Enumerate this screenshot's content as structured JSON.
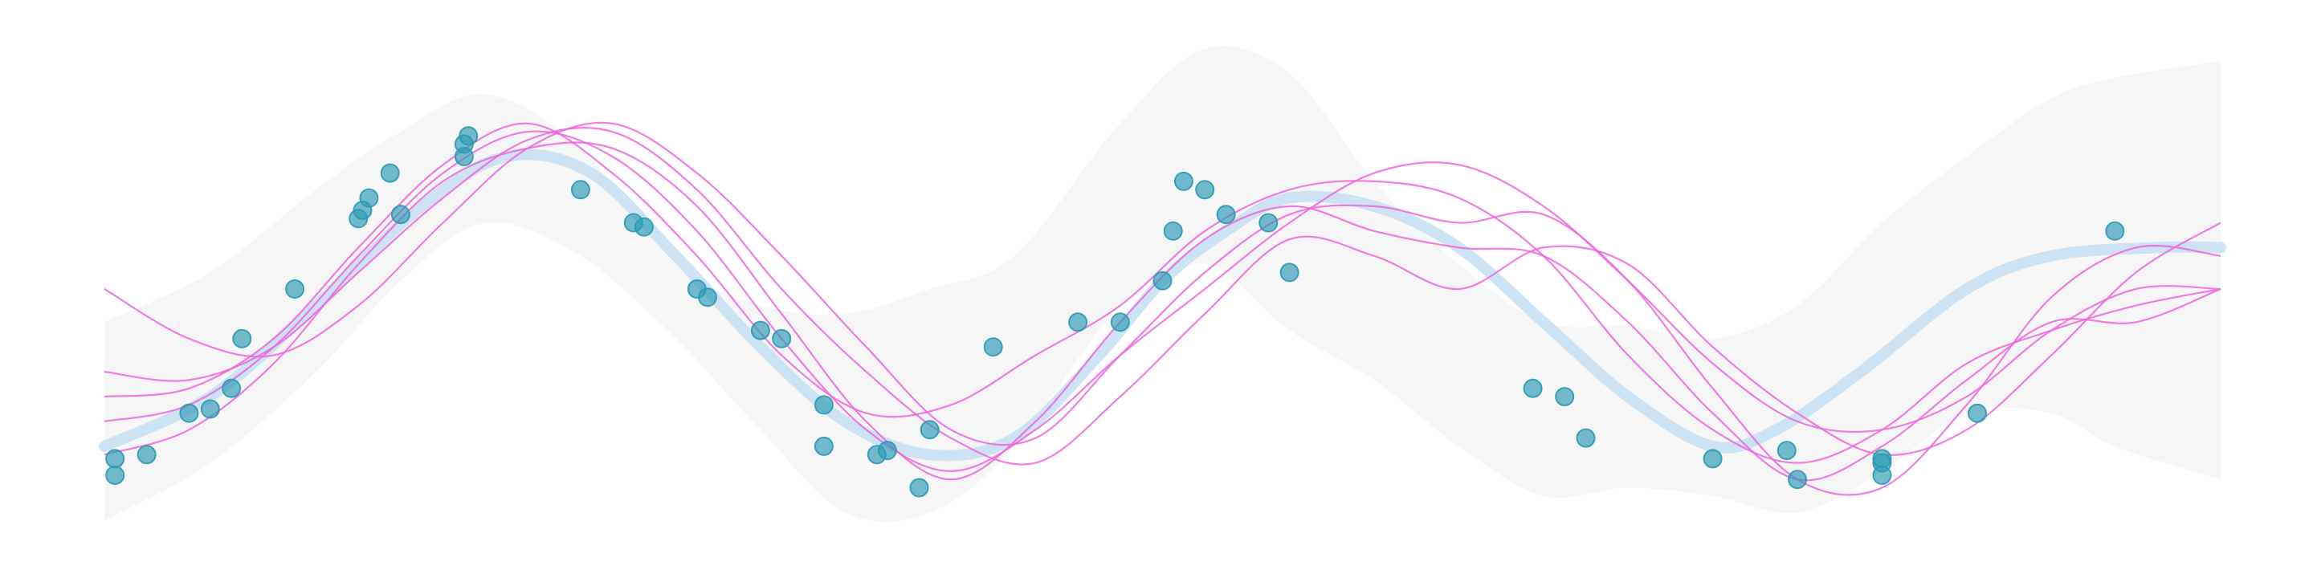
{
  "chart_data": {
    "type": "scatter",
    "title": "",
    "xlabel": "",
    "ylabel": "",
    "xlim": [
      0,
      10
    ],
    "ylim": [
      -3.2,
      3.2
    ],
    "grid": false,
    "legend": "none",
    "colors": {
      "band": "#ededed",
      "mean": "#c6dff2",
      "samples": "#ee66dd",
      "points": "#2b9ab3"
    },
    "series": [
      {
        "role": "confidence-band",
        "x": [
          0.0,
          0.5,
          1.0,
          1.4,
          1.8,
          2.25,
          2.7,
          3.1,
          3.5,
          3.9,
          4.3,
          4.8,
          5.2,
          5.6,
          6.0,
          6.4,
          6.8,
          7.2,
          7.6,
          8.0,
          8.4,
          8.8,
          9.2,
          9.5,
          10.0
        ],
        "upper": [
          -0.4,
          0.2,
          1.2,
          1.9,
          2.35,
          1.7,
          0.3,
          -0.2,
          -0.3,
          0.0,
          0.4,
          2.0,
          2.9,
          2.6,
          1.3,
          0.3,
          -0.4,
          -0.45,
          -0.6,
          -0.2,
          0.8,
          1.6,
          2.3,
          2.55,
          2.75
        ],
        "lower": [
          -2.8,
          -2.1,
          -1.0,
          0.1,
          0.8,
          0.4,
          -0.6,
          -1.7,
          -2.7,
          -2.7,
          -1.9,
          -0.2,
          0.3,
          -0.5,
          -1.1,
          -1.9,
          -2.5,
          -2.4,
          -2.5,
          -2.7,
          -2.2,
          -1.5,
          -1.5,
          -1.9,
          -2.3
        ]
      },
      {
        "role": "mean",
        "x": [
          0.0,
          0.5,
          1.0,
          1.5,
          1.9,
          2.3,
          2.7,
          3.1,
          3.5,
          3.9,
          4.3,
          4.7,
          5.0,
          5.3,
          5.6,
          6.0,
          6.4,
          6.8,
          7.2,
          7.6,
          7.9,
          8.3,
          8.8,
          9.2,
          9.7,
          10.0
        ],
        "y": [
          -1.9,
          -1.3,
          -0.2,
          1.0,
          1.6,
          1.4,
          0.4,
          -0.7,
          -1.6,
          -2.0,
          -1.8,
          -0.8,
          0.1,
          0.7,
          1.1,
          1.0,
          0.5,
          -0.4,
          -1.3,
          -1.9,
          -1.7,
          -1.0,
          0.0,
          0.4,
          0.5,
          0.5
        ]
      },
      {
        "role": "sample",
        "x": [
          0.0,
          0.4,
          0.8,
          1.2,
          1.6,
          2.0,
          2.4,
          2.8,
          3.2,
          3.6,
          4.0,
          4.4,
          4.8,
          5.2,
          5.6,
          6.0,
          6.4,
          6.8,
          7.2,
          7.6,
          8.0,
          8.4,
          8.8,
          9.2,
          9.6,
          10.0
        ],
        "y": [
          -1.3,
          -1.2,
          -0.6,
          0.5,
          1.5,
          2.0,
          1.4,
          0.4,
          -0.8,
          -1.5,
          -1.4,
          -0.8,
          -0.2,
          0.7,
          1.2,
          1.3,
          1.1,
          0.4,
          -0.8,
          -1.7,
          -2.1,
          -1.7,
          -0.9,
          -0.5,
          -0.2,
          0.0
        ]
      },
      {
        "role": "sample",
        "x": [
          0.0,
          0.4,
          0.8,
          1.2,
          1.6,
          2.0,
          2.4,
          2.8,
          3.2,
          3.6,
          4.0,
          4.4,
          4.8,
          5.2,
          5.6,
          6.0,
          6.4,
          6.8,
          7.2,
          7.6,
          8.0,
          8.4,
          8.8,
          9.2,
          9.6,
          10.0
        ],
        "y": [
          -1.6,
          -1.4,
          -0.7,
          0.4,
          1.4,
          1.9,
          1.6,
          0.7,
          -0.6,
          -1.7,
          -2.2,
          -1.7,
          -0.8,
          0.0,
          0.8,
          1.4,
          1.5,
          1.0,
          0.1,
          -0.9,
          -1.6,
          -1.7,
          -1.3,
          -0.5,
          0.0,
          0.0
        ]
      },
      {
        "role": "sample",
        "x": [
          0.0,
          0.4,
          0.8,
          1.2,
          1.6,
          2.0,
          2.4,
          2.8,
          3.2,
          3.6,
          4.0,
          4.4,
          4.8,
          5.2,
          5.6,
          6.0,
          6.4,
          6.8,
          7.2,
          7.6,
          8.0,
          8.4,
          8.8,
          9.2,
          9.6,
          10.0
        ],
        "y": [
          -1.0,
          -1.1,
          -0.7,
          0.2,
          1.1,
          1.8,
          1.9,
          1.2,
          0.0,
          -1.0,
          -1.8,
          -2.1,
          -1.3,
          -0.3,
          0.6,
          0.4,
          0.0,
          0.5,
          0.3,
          -0.7,
          -1.5,
          -2.0,
          -1.7,
          -0.8,
          0.2,
          0.8
        ]
      },
      {
        "role": "sample",
        "x": [
          0.0,
          0.4,
          0.8,
          1.2,
          1.6,
          2.0,
          2.4,
          2.8,
          3.2,
          3.6,
          4.0,
          4.4,
          4.8,
          5.2,
          5.6,
          6.0,
          6.4,
          6.8,
          7.2,
          7.6,
          8.0,
          8.4,
          8.8,
          9.2,
          9.6,
          10.0
        ],
        "y": [
          -2.0,
          -1.7,
          -0.9,
          0.3,
          1.3,
          1.7,
          1.7,
          1.0,
          -0.3,
          -1.6,
          -2.3,
          -1.6,
          -0.4,
          0.6,
          1.0,
          0.7,
          0.5,
          0.4,
          -0.4,
          -1.5,
          -2.3,
          -1.9,
          -1.1,
          -0.4,
          -0.4,
          0.0
        ]
      },
      {
        "role": "sample",
        "x": [
          0.0,
          0.4,
          0.8,
          1.2,
          1.6,
          2.0,
          2.4,
          2.8,
          3.2,
          3.6,
          4.0,
          4.4,
          4.8,
          5.2,
          5.6,
          6.0,
          6.4,
          6.8,
          7.2,
          7.6,
          8.0,
          8.4,
          8.8,
          9.2,
          9.6,
          10.0
        ],
        "y": [
          0.0,
          -0.6,
          -0.8,
          -0.2,
          0.8,
          1.7,
          2.0,
          1.4,
          0.4,
          -0.7,
          -1.7,
          -1.8,
          -0.8,
          0.2,
          0.9,
          1.0,
          0.8,
          0.9,
          0.1,
          -1.2,
          -2.3,
          -2.4,
          -1.4,
          -0.1,
          0.5,
          0.4
        ]
      },
      {
        "role": "observations",
        "x": [
          0.05,
          0.05,
          0.2,
          0.4,
          0.5,
          0.6,
          0.65,
          0.9,
          1.2,
          1.22,
          1.25,
          1.35,
          1.4,
          1.7,
          1.7,
          1.72,
          2.25,
          2.5,
          2.55,
          2.8,
          2.85,
          3.1,
          3.2,
          3.4,
          3.4,
          3.65,
          3.7,
          3.85,
          3.9,
          4.2,
          4.6,
          4.8,
          5.0,
          5.05,
          5.1,
          5.2,
          5.3,
          5.5,
          5.6,
          6.75,
          6.9,
          7.0,
          7.6,
          7.95,
          8.0,
          8.4,
          8.4,
          8.4,
          8.85,
          9.5
        ],
        "y": [
          -2.05,
          -2.25,
          -2.0,
          -1.5,
          -1.45,
          -1.2,
          -0.6,
          0.0,
          0.85,
          0.95,
          1.1,
          1.4,
          0.9,
          1.6,
          1.75,
          1.85,
          1.2,
          0.8,
          0.75,
          -0.0,
          -0.1,
          -0.5,
          -0.6,
          -1.4,
          -1.9,
          -2.0,
          -1.95,
          -2.4,
          -1.7,
          -0.7,
          -0.4,
          -0.4,
          0.1,
          0.7,
          1.3,
          1.2,
          0.9,
          0.8,
          0.2,
          -1.2,
          -1.3,
          -1.8,
          -2.05,
          -1.95,
          -2.3,
          -2.25,
          -2.05,
          -2.1,
          -1.5,
          0.7
        ]
      }
    ]
  }
}
